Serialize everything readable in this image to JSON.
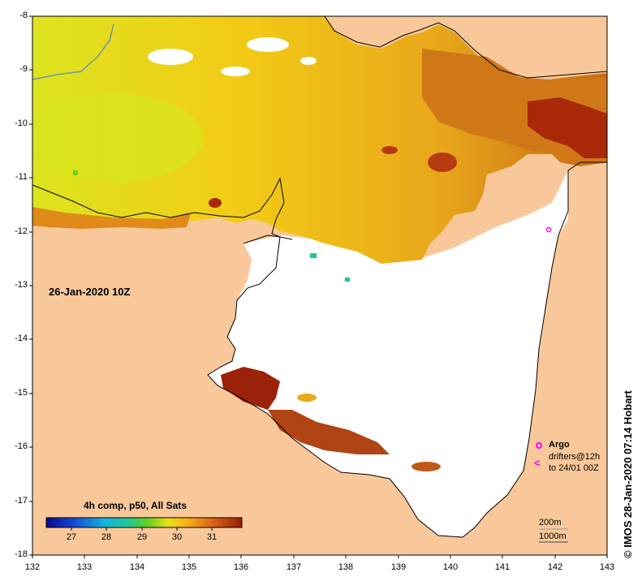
{
  "map": {
    "date_label": "26-Jan-2020 10Z",
    "lat_ticks": [
      "-8",
      "-9",
      "-10",
      "-11",
      "-12",
      "-13",
      "-14",
      "-15",
      "-16",
      "-17",
      "-18"
    ],
    "lon_ticks": [
      "132",
      "133",
      "134",
      "135",
      "136",
      "137",
      "138",
      "139",
      "140",
      "141",
      "142",
      "143"
    ],
    "colorbar": {
      "title": "4h comp, p50, All Sats",
      "ticks": [
        "27",
        "28",
        "29",
        "30",
        "31"
      ]
    },
    "legend": {
      "argo_label": "Argo",
      "drifters_line1": "drifters@12h",
      "drifters_line2": "to 24/01 00Z",
      "contour_200": "200m",
      "contour_1000": "1000m"
    },
    "credit": "© IMOS 28-Jan-2020 07:14 Hobart",
    "colors": {
      "land": "#f8c89a",
      "cloud": "#ffffff",
      "warm_yellow": "#f2c21a",
      "hot_orange": "#e0901a",
      "very_hot": "#a82808",
      "argo_marker": "#ff00ff"
    }
  }
}
